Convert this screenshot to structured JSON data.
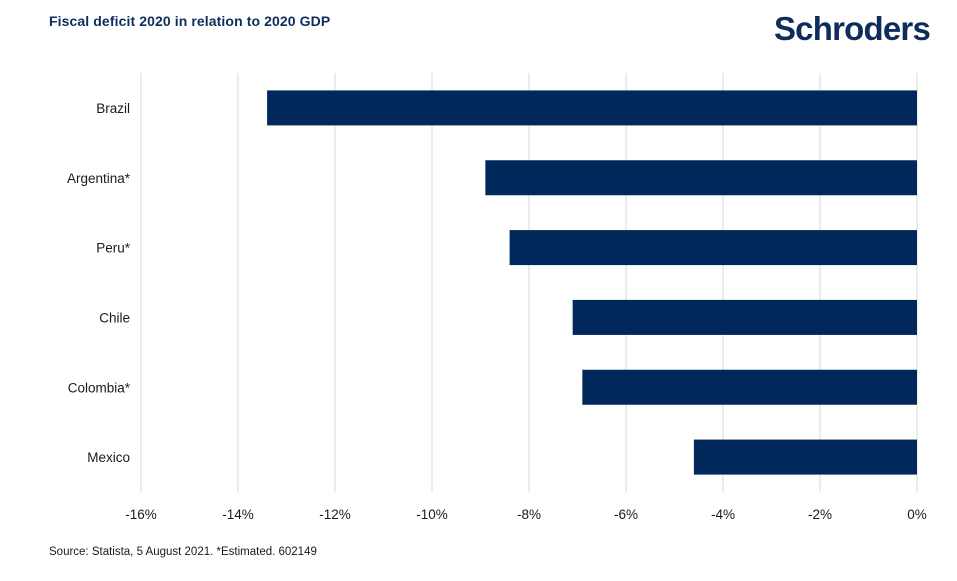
{
  "header": {
    "title": "Fiscal deficit 2020 in relation to 2020 GDP",
    "brand": "Schroders"
  },
  "footer": {
    "source": "Source: Statista, 5 August 2021. *Estimated. 602149"
  },
  "colors": {
    "bar": "#00285a",
    "title": "#0f2d5c",
    "gridline": "#d9d9d9"
  },
  "chart_data": {
    "type": "bar",
    "orientation": "horizontal",
    "categories": [
      "Brazil",
      "Argentina*",
      "Peru*",
      "Chile",
      "Colombia*",
      "Mexico"
    ],
    "values": [
      -13.4,
      -8.9,
      -8.4,
      -7.1,
      -6.9,
      -4.6
    ],
    "xlim": [
      -16,
      0
    ],
    "xticks": [
      -16,
      -14,
      -12,
      -10,
      -8,
      -6,
      -4,
      -2,
      0
    ],
    "xtick_labels": [
      "-16%",
      "-14%",
      "-12%",
      "-10%",
      "-8%",
      "-6%",
      "-4%",
      "-2%",
      "0%"
    ],
    "title": "Fiscal deficit 2020 in relation to 2020 GDP",
    "xlabel": "",
    "ylabel": "",
    "grid": "vertical",
    "legend": "none"
  }
}
